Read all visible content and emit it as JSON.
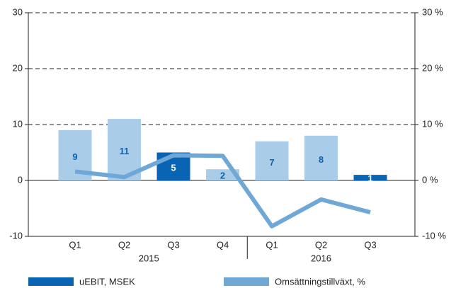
{
  "chart_data": {
    "type": "bar-line",
    "categories": [
      "Q1",
      "Q2",
      "Q3",
      "Q4",
      "Q1",
      "Q2",
      "Q3"
    ],
    "groups": [
      {
        "label": "2015",
        "count": 4
      },
      {
        "label": "2016",
        "count": 3
      }
    ],
    "series": [
      {
        "name": "uEBIT, MSEK",
        "type": "bar",
        "color": "#0a64b4",
        "colors": [
          "#a9cce8",
          "#a9cce8",
          "#0a64b4",
          "#a9cce8",
          "#a9cce8",
          "#a9cce8",
          "#0a64b4"
        ],
        "values": [
          9,
          11,
          5,
          2,
          7,
          8,
          1
        ]
      },
      {
        "name": "Omsättningstillväxt, %",
        "type": "line",
        "axis": "y2",
        "color": "#6fa8d6",
        "values": [
          1.6,
          0.6,
          4.5,
          4.4,
          -8.2,
          -3.4,
          -5.7
        ]
      }
    ],
    "ylim": [
      -10,
      30
    ],
    "yticks": [
      -10,
      0,
      10,
      20,
      30
    ],
    "y2lim": [
      -10,
      30
    ],
    "y2ticks": [
      {
        "value": -10,
        "label": "-10 %"
      },
      {
        "value": 0,
        "label": "0 %"
      },
      {
        "value": 10,
        "label": "10 %"
      },
      {
        "value": 20,
        "label": "20 %"
      },
      {
        "value": 30,
        "label": "30 %"
      }
    ],
    "grid": true
  }
}
